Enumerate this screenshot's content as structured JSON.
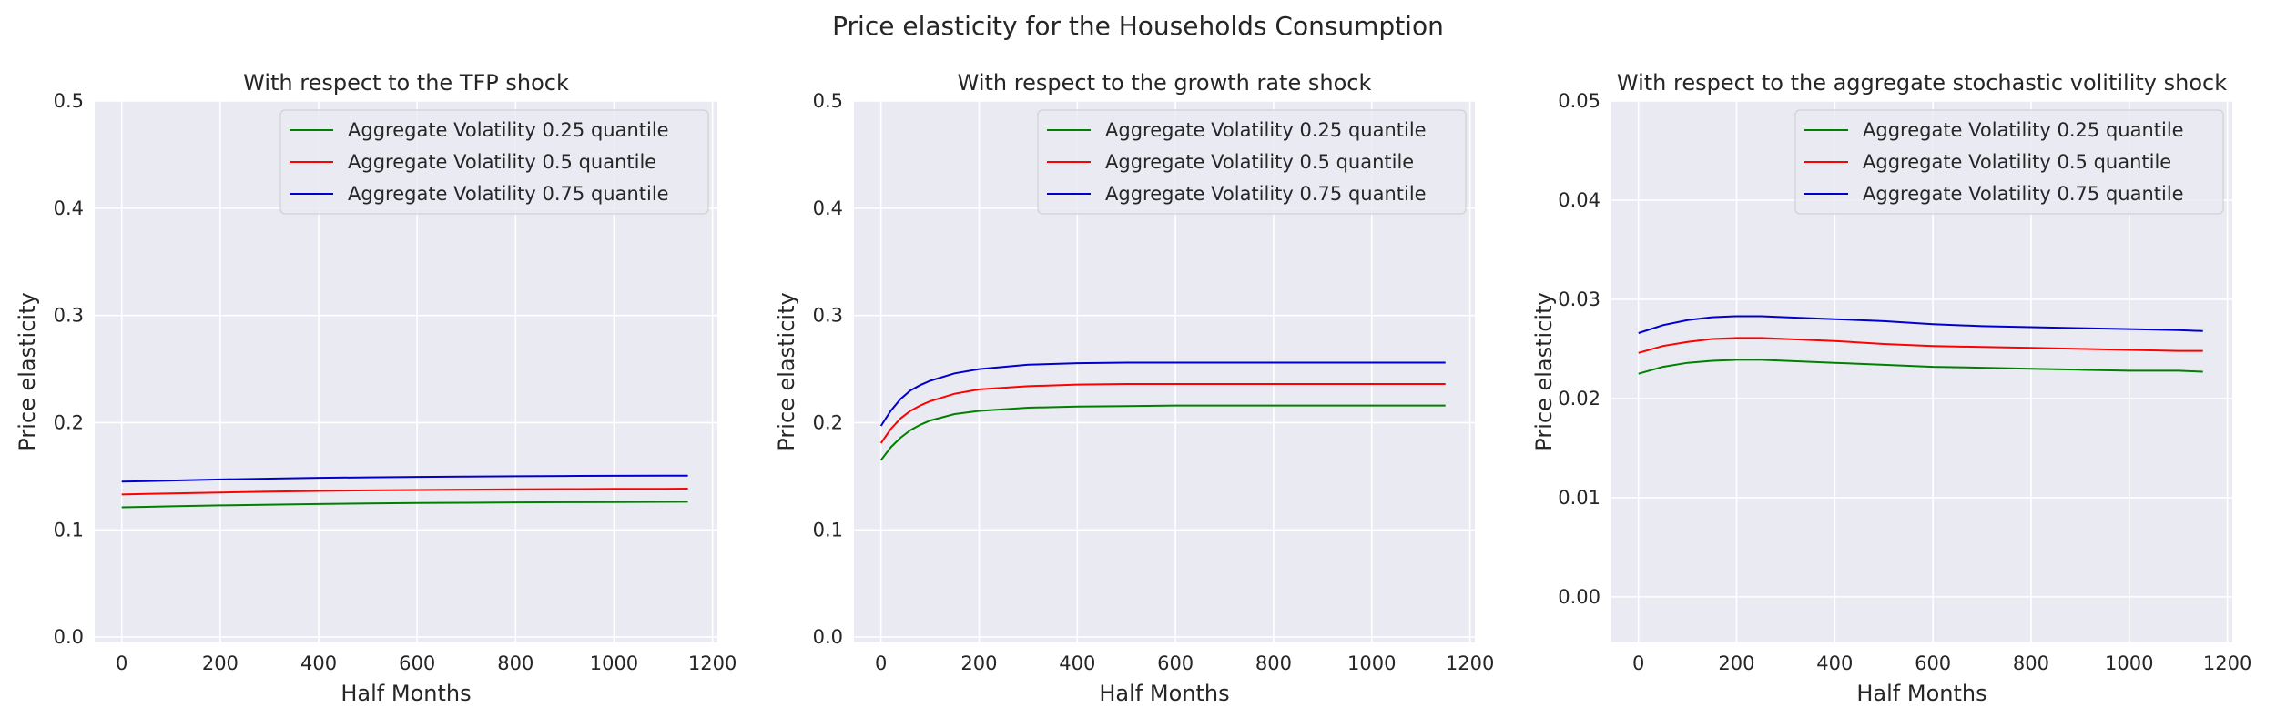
{
  "figure": {
    "title": "Price elasticity for the Households Consumption"
  },
  "chart_data": [
    {
      "type": "line",
      "title": "With respect to the TFP shock",
      "xlabel": "Half Months",
      "ylabel": "Price elasticity",
      "xlim": [
        -55,
        1210
      ],
      "ylim": [
        -0.005,
        0.5
      ],
      "xticks": [
        0,
        200,
        400,
        600,
        800,
        1000,
        1200
      ],
      "xtick_labels": [
        "0",
        "200",
        "400",
        "600",
        "800",
        "1000",
        "1200"
      ],
      "yticks": [
        0.0,
        0.1,
        0.2,
        0.3,
        0.4,
        0.5
      ],
      "ytick_labels": [
        "0.0",
        "0.1",
        "0.2",
        "0.3",
        "0.4",
        "0.5"
      ],
      "grid": true,
      "legend_position": "top-right",
      "x": [
        0,
        50,
        100,
        200,
        300,
        400,
        500,
        600,
        700,
        800,
        900,
        1000,
        1100,
        1150
      ],
      "series": [
        {
          "name": "Aggregate Volatility 0.25 quantile",
          "color": "#008000",
          "values": [
            0.121,
            0.1215,
            0.122,
            0.1228,
            0.1235,
            0.1241,
            0.1246,
            0.125,
            0.1253,
            0.1256,
            0.1258,
            0.126,
            0.1261,
            0.1262
          ]
        },
        {
          "name": "Aggregate Volatility 0.5 quantile",
          "color": "#ff0000",
          "values": [
            0.133,
            0.1335,
            0.134,
            0.1349,
            0.1357,
            0.1363,
            0.1368,
            0.1372,
            0.1375,
            0.1378,
            0.138,
            0.1382,
            0.1383,
            0.1384
          ]
        },
        {
          "name": "Aggregate Volatility 0.75 quantile",
          "color": "#0000cc",
          "values": [
            0.145,
            0.1455,
            0.146,
            0.147,
            0.1478,
            0.1485,
            0.149,
            0.1494,
            0.1497,
            0.15,
            0.1502,
            0.1504,
            0.1505,
            0.1506
          ]
        }
      ]
    },
    {
      "type": "line",
      "title": "With respect to the growth rate shock",
      "xlabel": "Half Months",
      "ylabel": "Price elasticity",
      "xlim": [
        -55,
        1210
      ],
      "ylim": [
        -0.005,
        0.5
      ],
      "xticks": [
        0,
        200,
        400,
        600,
        800,
        1000,
        1200
      ],
      "xtick_labels": [
        "0",
        "200",
        "400",
        "600",
        "800",
        "1000",
        "1200"
      ],
      "yticks": [
        0.0,
        0.1,
        0.2,
        0.3,
        0.4,
        0.5
      ],
      "ytick_labels": [
        "0.0",
        "0.1",
        "0.2",
        "0.3",
        "0.4",
        "0.5"
      ],
      "grid": true,
      "legend_position": "top-right",
      "x": [
        0,
        20,
        40,
        60,
        80,
        100,
        150,
        200,
        300,
        400,
        500,
        600,
        800,
        1000,
        1150
      ],
      "series": [
        {
          "name": "Aggregate Volatility 0.25 quantile",
          "color": "#008000",
          "values": [
            0.165,
            0.177,
            0.186,
            0.193,
            0.198,
            0.202,
            0.208,
            0.211,
            0.214,
            0.215,
            0.2155,
            0.216,
            0.216,
            0.216,
            0.216
          ]
        },
        {
          "name": "Aggregate Volatility 0.5 quantile",
          "color": "#ff0000",
          "values": [
            0.181,
            0.194,
            0.204,
            0.211,
            0.216,
            0.22,
            0.227,
            0.231,
            0.234,
            0.2355,
            0.236,
            0.236,
            0.236,
            0.236,
            0.236
          ]
        },
        {
          "name": "Aggregate Volatility 0.75 quantile",
          "color": "#0000cc",
          "values": [
            0.197,
            0.211,
            0.222,
            0.23,
            0.235,
            0.239,
            0.246,
            0.25,
            0.254,
            0.2555,
            0.256,
            0.256,
            0.256,
            0.256,
            0.256
          ]
        }
      ]
    },
    {
      "type": "line",
      "title": "With respect to the aggregate stochastic volitility shock",
      "xlabel": "Half Months",
      "ylabel": "Price elasticity",
      "xlim": [
        -55,
        1210
      ],
      "ylim": [
        -0.0046,
        0.05
      ],
      "xticks": [
        0,
        200,
        400,
        600,
        800,
        1000,
        1200
      ],
      "xtick_labels": [
        "0",
        "200",
        "400",
        "600",
        "800",
        "1000",
        "1200"
      ],
      "yticks": [
        0.0,
        0.01,
        0.02,
        0.03,
        0.04,
        0.05
      ],
      "ytick_labels": [
        "0.00",
        "0.01",
        "0.02",
        "0.03",
        "0.04",
        "0.05"
      ],
      "grid": true,
      "legend_position": "top-right",
      "x": [
        0,
        50,
        100,
        150,
        200,
        250,
        300,
        400,
        500,
        600,
        700,
        800,
        900,
        1000,
        1100,
        1150
      ],
      "series": [
        {
          "name": "Aggregate Volatility 0.25 quantile",
          "color": "#008000",
          "values": [
            0.0225,
            0.0232,
            0.0236,
            0.0238,
            0.0239,
            0.0239,
            0.0238,
            0.0236,
            0.0234,
            0.0232,
            0.0231,
            0.023,
            0.0229,
            0.0228,
            0.0228,
            0.0227
          ]
        },
        {
          "name": "Aggregate Volatility 0.5 quantile",
          "color": "#ff0000",
          "values": [
            0.0246,
            0.0253,
            0.0257,
            0.026,
            0.0261,
            0.0261,
            0.026,
            0.0258,
            0.0255,
            0.0253,
            0.0252,
            0.0251,
            0.025,
            0.0249,
            0.0248,
            0.0248
          ]
        },
        {
          "name": "Aggregate Volatility 0.75 quantile",
          "color": "#0000cc",
          "values": [
            0.0266,
            0.0274,
            0.0279,
            0.0282,
            0.0283,
            0.0283,
            0.0282,
            0.028,
            0.0278,
            0.0275,
            0.0273,
            0.0272,
            0.0271,
            0.027,
            0.0269,
            0.0268
          ]
        }
      ]
    }
  ]
}
